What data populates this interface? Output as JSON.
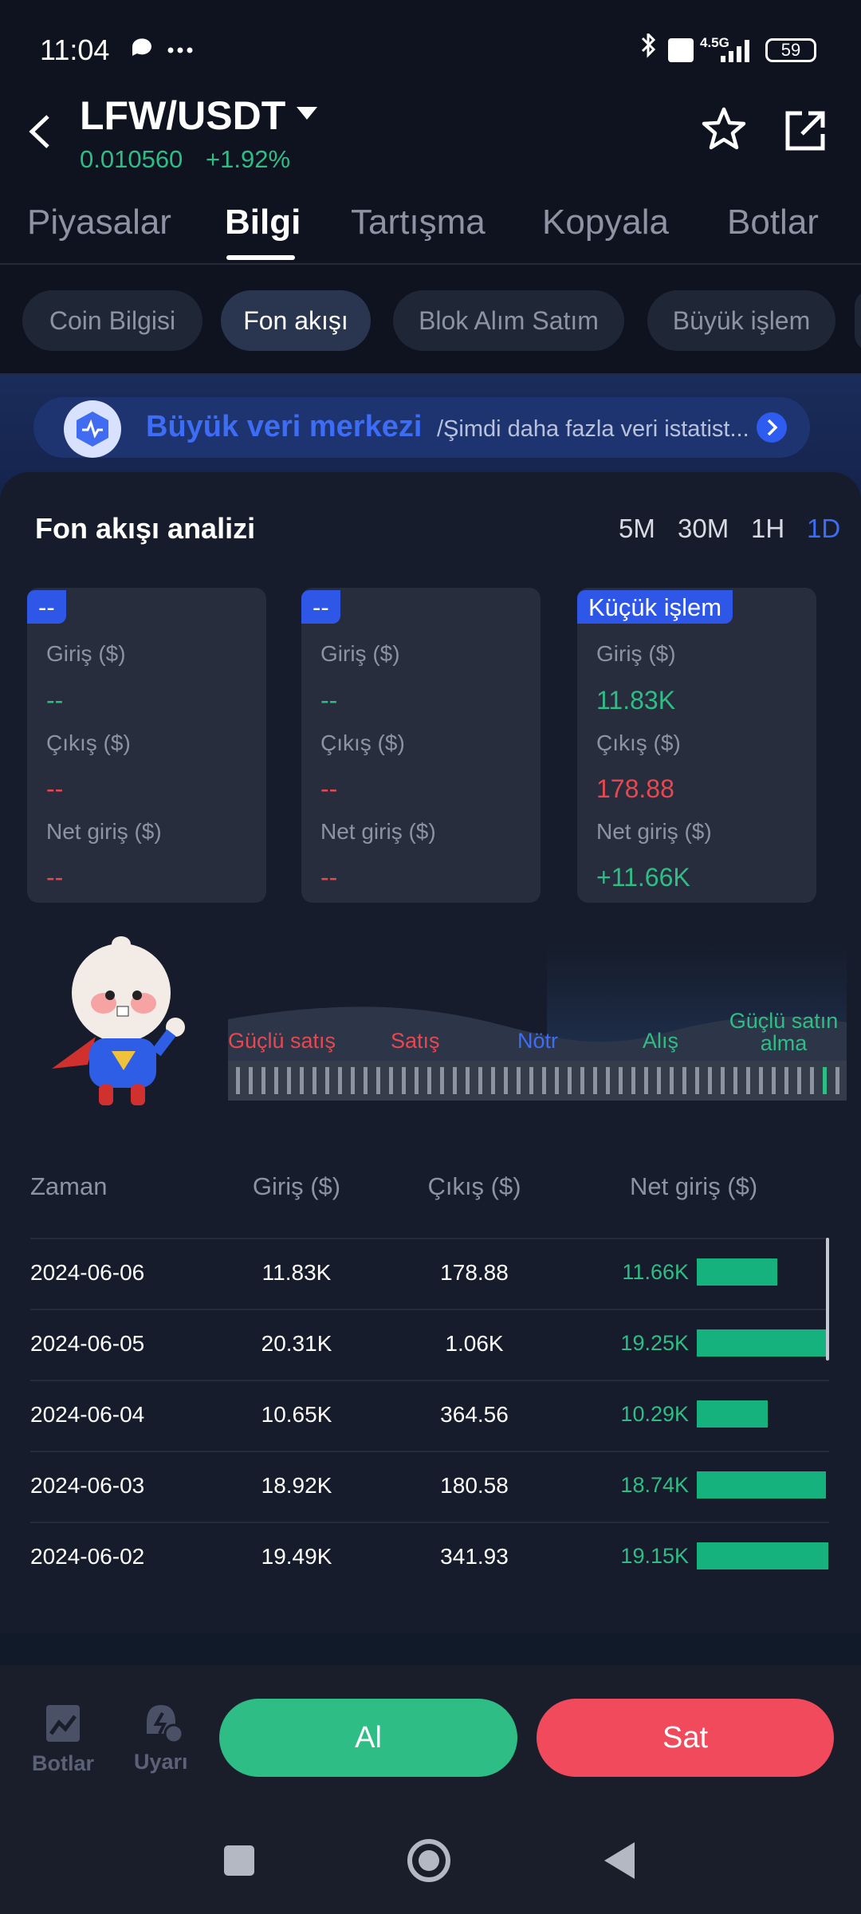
{
  "status_bar": {
    "time": "11:04",
    "network": "4.5G",
    "battery": "59"
  },
  "header": {
    "pair": "LFW/USDT",
    "price": "0.010560",
    "change": "+1.92%"
  },
  "tabs": [
    "Piyasalar",
    "Bilgi",
    "Tartışma",
    "Kopyala",
    "Botlar"
  ],
  "active_tab": 1,
  "chips": [
    "Coin Bilgisi",
    "Fon akışı",
    "Blok Alım Satım",
    "Büyük işlem"
  ],
  "active_chip": 1,
  "banner": {
    "title": "Büyük veri merkezi",
    "text": "/Şimdi daha fazla veri istatist..."
  },
  "analysis": {
    "title": "Fon akışı analizi",
    "periods": [
      "5M",
      "30M",
      "1H",
      "1D"
    ],
    "active_period": 3,
    "cards": [
      {
        "tag": "--",
        "inflow_label": "Giriş ($)",
        "inflow": "--",
        "outflow_label": "Çıkış ($)",
        "outflow": "--",
        "net_label": "Net giriş ($)",
        "net": "--"
      },
      {
        "tag": "--",
        "inflow_label": "Giriş ($)",
        "inflow": "--",
        "outflow_label": "Çıkış ($)",
        "outflow": "--",
        "net_label": "Net giriş ($)",
        "net": "--"
      },
      {
        "tag": "Küçük işlem",
        "inflow_label": "Giriş ($)",
        "inflow": "11.83K",
        "outflow_label": "Çıkış ($)",
        "outflow": "178.88",
        "net_label": "Net giriş ($)",
        "net": "+11.66K"
      }
    ]
  },
  "sentiment": {
    "labels": [
      "Güçlü satış",
      "Satış",
      "Nötr",
      "Alış",
      "Güçlü satın alma"
    ]
  },
  "table": {
    "headers": [
      "Zaman",
      "Giriş ($)",
      "Çıkış ($)",
      "Net giriş ($)"
    ],
    "rows": [
      [
        "2024-06-06",
        "11.83K",
        "178.88",
        "11.66K"
      ],
      [
        "2024-06-05",
        "20.31K",
        "1.06K",
        "19.25K"
      ],
      [
        "2024-06-04",
        "10.65K",
        "364.56",
        "10.29K"
      ],
      [
        "2024-06-03",
        "18.92K",
        "180.58",
        "18.74K"
      ],
      [
        "2024-06-02",
        "19.49K",
        "341.93",
        "19.15K"
      ]
    ]
  },
  "bottom": {
    "bots": "Botlar",
    "alerts": "Uyarı",
    "buy": "Al",
    "sell": "Sat"
  }
}
